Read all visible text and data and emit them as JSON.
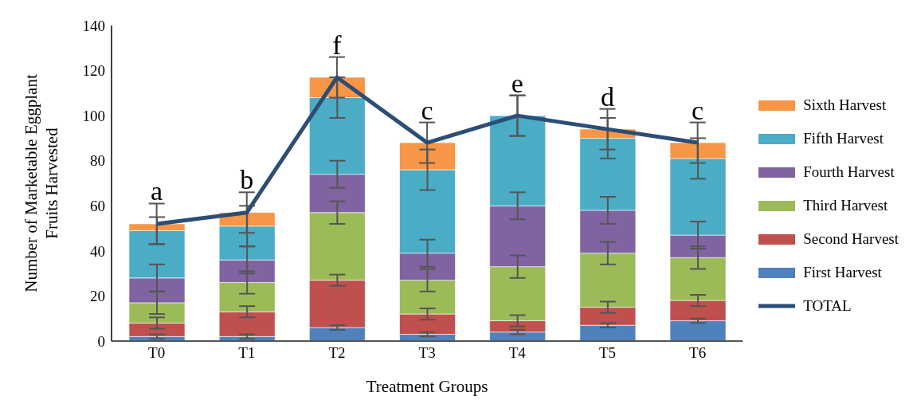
{
  "chart_data": {
    "type": "bar",
    "stacked": true,
    "xlabel": "Treatment Groups",
    "ylabel": "Number of Marketable Eggplant Fruits Harvested",
    "categories": [
      "T0",
      "T1",
      "T2",
      "T3",
      "T4",
      "T5",
      "T6"
    ],
    "series": [
      {
        "name": "First Harvest",
        "color": "#4f81bd",
        "values": [
          2,
          2,
          6,
          3,
          4,
          7,
          9
        ],
        "errors": [
          1,
          1,
          1,
          1,
          1,
          1,
          1
        ]
      },
      {
        "name": "Second Harvest",
        "color": "#c0504d",
        "values": [
          6,
          11,
          21,
          9,
          5,
          8,
          9
        ],
        "errors": [
          2.5,
          2.5,
          2.5,
          2.5,
          2.5,
          2.5,
          2.5
        ]
      },
      {
        "name": "Third Harvest",
        "color": "#9bbb59",
        "values": [
          9,
          13,
          30,
          15,
          24,
          24,
          19
        ],
        "errors": [
          5,
          5,
          5,
          5,
          5,
          5,
          5
        ]
      },
      {
        "name": "Fourth Harvest",
        "color": "#8064a2",
        "values": [
          11,
          10,
          17,
          12,
          27,
          19,
          10
        ],
        "errors": [
          6,
          6,
          6,
          6,
          6,
          6,
          6
        ]
      },
      {
        "name": "Fifth Harvest",
        "color": "#4bacc6",
        "values": [
          21,
          15,
          34,
          37,
          40,
          32,
          34
        ],
        "errors": [
          6,
          9,
          9,
          9,
          9,
          9,
          9
        ]
      },
      {
        "name": "Sixth Harvest",
        "color": "#f79646",
        "values": [
          3,
          6,
          9,
          12,
          0,
          4,
          7
        ]
      },
      {
        "name": "TOTAL",
        "type": "line",
        "color": "#2c4d75",
        "values": [
          52,
          57,
          117,
          88,
          100,
          94,
          88
        ],
        "errors": [
          9,
          9,
          9,
          9,
          9,
          9,
          9
        ]
      }
    ],
    "ylim": [
      0,
      140
    ],
    "yticks": [
      0,
      20,
      40,
      60,
      80,
      100,
      120,
      140
    ],
    "grid": false,
    "legend": "right",
    "marker": "none",
    "annotations": [
      "a",
      "b",
      "f",
      "c",
      "e",
      "d",
      "c"
    ]
  }
}
